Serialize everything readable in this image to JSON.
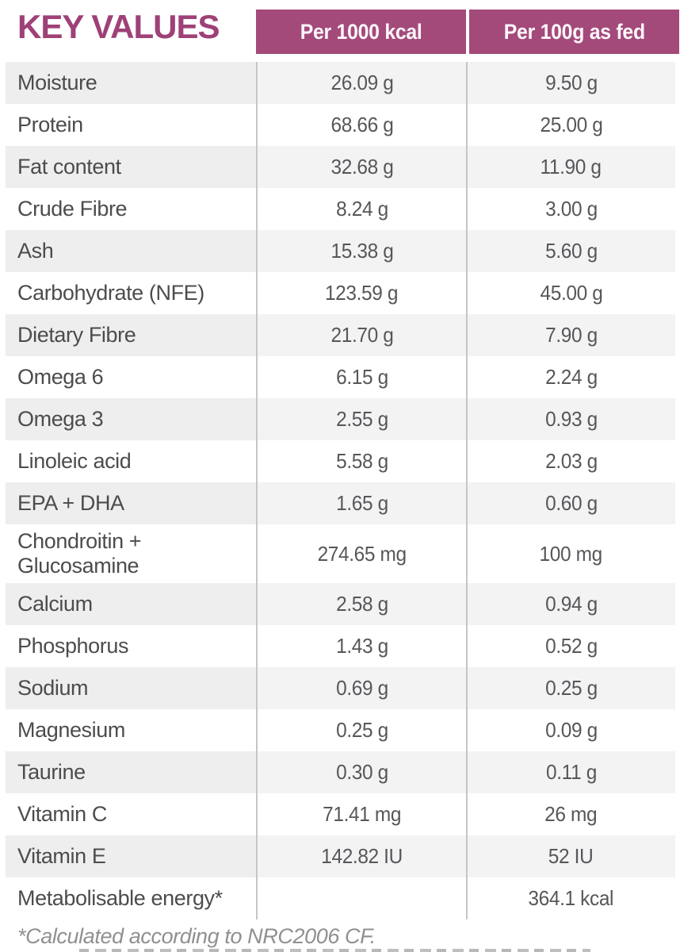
{
  "colors": {
    "accent": "#a34a7b",
    "title_text": "#9e4177",
    "header_text": "#fdf6fa",
    "row_shade_label": "#eeeeef",
    "row_shade_value": "#f3f3f4",
    "label_text": "#4c4c4e",
    "value_text": "#56575a",
    "divider": "#c6c6c8",
    "footnote_text": "#8f9092"
  },
  "table": {
    "title": "KEY VALUES",
    "columns": [
      "Per 1000 kcal",
      "Per 100g as fed"
    ],
    "rows": [
      {
        "label": "Moisture",
        "per_1000_kcal": "26.09 g",
        "per_100g_as_fed": "9.50 g"
      },
      {
        "label": "Protein",
        "per_1000_kcal": "68.66 g",
        "per_100g_as_fed": "25.00 g"
      },
      {
        "label": "Fat content",
        "per_1000_kcal": "32.68 g",
        "per_100g_as_fed": "11.90 g"
      },
      {
        "label": "Crude Fibre",
        "per_1000_kcal": "8.24 g",
        "per_100g_as_fed": "3.00 g"
      },
      {
        "label": "Ash",
        "per_1000_kcal": "15.38 g",
        "per_100g_as_fed": "5.60 g"
      },
      {
        "label": "Carbohydrate (NFE)",
        "per_1000_kcal": "123.59 g",
        "per_100g_as_fed": "45.00 g"
      },
      {
        "label": "Dietary Fibre",
        "per_1000_kcal": "21.70 g",
        "per_100g_as_fed": "7.90 g"
      },
      {
        "label": "Omega 6",
        "per_1000_kcal": "6.15 g",
        "per_100g_as_fed": "2.24 g"
      },
      {
        "label": "Omega 3",
        "per_1000_kcal": "2.55 g",
        "per_100g_as_fed": "0.93 g"
      },
      {
        "label": "Linoleic acid",
        "per_1000_kcal": "5.58 g",
        "per_100g_as_fed": "2.03 g"
      },
      {
        "label": "EPA + DHA",
        "per_1000_kcal": "1.65 g",
        "per_100g_as_fed": "0.60 g"
      },
      {
        "label": "Chondroitin + Glucosamine",
        "per_1000_kcal": "274.65 mg",
        "per_100g_as_fed": "100 mg"
      },
      {
        "label": "Calcium",
        "per_1000_kcal": "2.58 g",
        "per_100g_as_fed": "0.94 g"
      },
      {
        "label": "Phosphorus",
        "per_1000_kcal": "1.43 g",
        "per_100g_as_fed": "0.52 g"
      },
      {
        "label": "Sodium",
        "per_1000_kcal": "0.69 g",
        "per_100g_as_fed": "0.25 g"
      },
      {
        "label": "Magnesium",
        "per_1000_kcal": "0.25 g",
        "per_100g_as_fed": "0.09 g"
      },
      {
        "label": "Taurine",
        "per_1000_kcal": "0.30 g",
        "per_100g_as_fed": "0.11 g"
      },
      {
        "label": "Vitamin C",
        "per_1000_kcal": "71.41 mg",
        "per_100g_as_fed": "26 mg"
      },
      {
        "label": "Vitamin E",
        "per_1000_kcal": "142.82 IU",
        "per_100g_as_fed": "52 IU"
      },
      {
        "label": "Metabolisable energy*",
        "per_1000_kcal": "",
        "per_100g_as_fed": "364.1 kcal"
      }
    ],
    "footnote": "*Calculated according to NRC2006 CF."
  }
}
